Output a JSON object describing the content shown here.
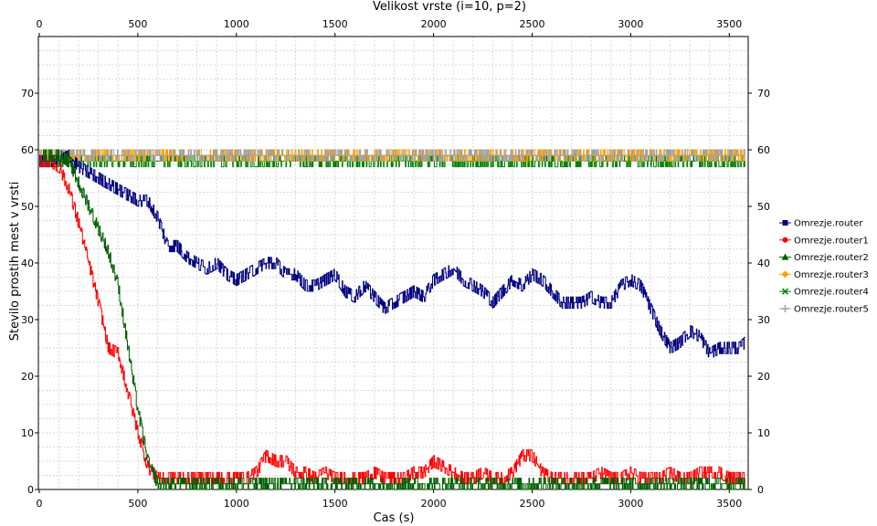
{
  "chart_data": {
    "type": "line",
    "title": "Velikost vrste (i=10, p=2)",
    "xlabel": "Cas (s)",
    "ylabel": "Stevilo prostih mest v vrsti",
    "xlim": [
      0,
      3600
    ],
    "ylim": [
      0,
      80
    ],
    "xticks": [
      0,
      500,
      1000,
      1500,
      2000,
      2500,
      3000,
      3500
    ],
    "yticks": [
      0,
      10,
      20,
      30,
      40,
      50,
      60,
      70
    ],
    "grid": true,
    "legend_position": "right",
    "series": [
      {
        "name": "Omrezje.router",
        "color": "#000080",
        "marker": "square",
        "points": [
          [
            0,
            58
          ],
          [
            50,
            58
          ],
          [
            100,
            58
          ],
          [
            150,
            59
          ],
          [
            200,
            57
          ],
          [
            250,
            56
          ],
          [
            300,
            55
          ],
          [
            350,
            54
          ],
          [
            400,
            53
          ],
          [
            450,
            52
          ],
          [
            500,
            51
          ],
          [
            550,
            51
          ],
          [
            600,
            48
          ],
          [
            650,
            43
          ],
          [
            700,
            43
          ],
          [
            750,
            41
          ],
          [
            800,
            40
          ],
          [
            850,
            39
          ],
          [
            900,
            40
          ],
          [
            950,
            38
          ],
          [
            1000,
            37
          ],
          [
            1050,
            38
          ],
          [
            1100,
            39
          ],
          [
            1150,
            40
          ],
          [
            1200,
            40
          ],
          [
            1250,
            38
          ],
          [
            1300,
            38
          ],
          [
            1350,
            36
          ],
          [
            1400,
            36
          ],
          [
            1450,
            37
          ],
          [
            1500,
            38
          ],
          [
            1550,
            35
          ],
          [
            1600,
            34
          ],
          [
            1650,
            36
          ],
          [
            1700,
            34
          ],
          [
            1750,
            32
          ],
          [
            1800,
            33
          ],
          [
            1850,
            34
          ],
          [
            1900,
            35
          ],
          [
            1950,
            34
          ],
          [
            2000,
            37
          ],
          [
            2050,
            38
          ],
          [
            2100,
            39
          ],
          [
            2150,
            37
          ],
          [
            2200,
            36
          ],
          [
            2250,
            35
          ],
          [
            2300,
            33
          ],
          [
            2350,
            35
          ],
          [
            2400,
            37
          ],
          [
            2450,
            36
          ],
          [
            2500,
            38
          ],
          [
            2550,
            37
          ],
          [
            2600,
            35
          ],
          [
            2650,
            33
          ],
          [
            2700,
            33
          ],
          [
            2750,
            33
          ],
          [
            2800,
            34
          ],
          [
            2850,
            33
          ],
          [
            2900,
            33
          ],
          [
            2950,
            36
          ],
          [
            3000,
            37
          ],
          [
            3050,
            36
          ],
          [
            3100,
            32
          ],
          [
            3150,
            28
          ],
          [
            3200,
            25
          ],
          [
            3250,
            26
          ],
          [
            3300,
            28
          ],
          [
            3350,
            27
          ],
          [
            3400,
            24
          ],
          [
            3450,
            25
          ],
          [
            3500,
            25
          ],
          [
            3550,
            25
          ],
          [
            3580,
            26
          ]
        ]
      },
      {
        "name": "Omrezje.router1",
        "color": "#ff0000",
        "marker": "circle",
        "points": [
          [
            0,
            58
          ],
          [
            50,
            58
          ],
          [
            100,
            57
          ],
          [
            150,
            53
          ],
          [
            200,
            47
          ],
          [
            250,
            40
          ],
          [
            300,
            33
          ],
          [
            350,
            25
          ],
          [
            400,
            24
          ],
          [
            450,
            17
          ],
          [
            500,
            10
          ],
          [
            550,
            4
          ],
          [
            600,
            2
          ],
          [
            650,
            2
          ],
          [
            700,
            2
          ],
          [
            750,
            2
          ],
          [
            800,
            2
          ],
          [
            850,
            2
          ],
          [
            900,
            2
          ],
          [
            950,
            2
          ],
          [
            1000,
            2
          ],
          [
            1050,
            2
          ],
          [
            1100,
            3
          ],
          [
            1150,
            6
          ],
          [
            1200,
            5
          ],
          [
            1250,
            5
          ],
          [
            1300,
            3
          ],
          [
            1350,
            3
          ],
          [
            1400,
            2
          ],
          [
            1450,
            3
          ],
          [
            1500,
            2
          ],
          [
            1550,
            2
          ],
          [
            1600,
            2
          ],
          [
            1650,
            2
          ],
          [
            1700,
            3
          ],
          [
            1750,
            2
          ],
          [
            1800,
            2
          ],
          [
            1850,
            2
          ],
          [
            1900,
            3
          ],
          [
            1950,
            3
          ],
          [
            2000,
            5
          ],
          [
            2050,
            4
          ],
          [
            2100,
            3
          ],
          [
            2150,
            2
          ],
          [
            2200,
            2
          ],
          [
            2250,
            3
          ],
          [
            2300,
            2
          ],
          [
            2350,
            2
          ],
          [
            2400,
            3
          ],
          [
            2450,
            6
          ],
          [
            2500,
            6
          ],
          [
            2550,
            3
          ],
          [
            2600,
            2
          ],
          [
            2650,
            2
          ],
          [
            2700,
            2
          ],
          [
            2750,
            2
          ],
          [
            2800,
            2
          ],
          [
            2850,
            3
          ],
          [
            2900,
            2
          ],
          [
            2950,
            2
          ],
          [
            3000,
            3
          ],
          [
            3050,
            2
          ],
          [
            3100,
            2
          ],
          [
            3150,
            2
          ],
          [
            3200,
            3
          ],
          [
            3250,
            2
          ],
          [
            3300,
            2
          ],
          [
            3350,
            3
          ],
          [
            3400,
            3
          ],
          [
            3450,
            3
          ],
          [
            3500,
            2
          ],
          [
            3550,
            2
          ],
          [
            3580,
            2
          ]
        ]
      },
      {
        "name": "Omrezje.router2",
        "color": "#006000",
        "marker": "triangle",
        "points": [
          [
            0,
            59
          ],
          [
            50,
            59
          ],
          [
            100,
            59
          ],
          [
            150,
            58
          ],
          [
            200,
            54
          ],
          [
            250,
            50
          ],
          [
            300,
            46
          ],
          [
            350,
            42
          ],
          [
            400,
            36
          ],
          [
            450,
            25
          ],
          [
            500,
            14
          ],
          [
            550,
            5
          ],
          [
            600,
            1
          ],
          [
            650,
            1
          ],
          [
            700,
            1
          ],
          [
            750,
            1
          ],
          [
            800,
            1
          ],
          [
            850,
            1
          ],
          [
            900,
            1
          ],
          [
            950,
            1
          ],
          [
            1000,
            1
          ],
          [
            1050,
            1
          ],
          [
            1100,
            1
          ],
          [
            1150,
            1
          ],
          [
            1200,
            1
          ],
          [
            1250,
            1
          ],
          [
            1300,
            1
          ],
          [
            1350,
            1
          ],
          [
            1400,
            1
          ],
          [
            1450,
            1
          ],
          [
            1500,
            1
          ],
          [
            1550,
            1
          ],
          [
            1600,
            1
          ],
          [
            1650,
            1
          ],
          [
            1700,
            1
          ],
          [
            1750,
            1
          ],
          [
            1800,
            1
          ],
          [
            1850,
            1
          ],
          [
            1900,
            1
          ],
          [
            1950,
            1
          ],
          [
            2000,
            1
          ],
          [
            2050,
            1
          ],
          [
            2100,
            1
          ],
          [
            2150,
            1
          ],
          [
            2200,
            1
          ],
          [
            2250,
            1
          ],
          [
            2300,
            1
          ],
          [
            2350,
            1
          ],
          [
            2400,
            1
          ],
          [
            2450,
            1
          ],
          [
            2500,
            1
          ],
          [
            2550,
            1
          ],
          [
            2600,
            1
          ],
          [
            2650,
            1
          ],
          [
            2700,
            1
          ],
          [
            2750,
            1
          ],
          [
            2800,
            1
          ],
          [
            2850,
            1
          ],
          [
            2900,
            1
          ],
          [
            2950,
            1
          ],
          [
            3000,
            1
          ],
          [
            3050,
            1
          ],
          [
            3100,
            1
          ],
          [
            3150,
            1
          ],
          [
            3200,
            1
          ],
          [
            3250,
            1
          ],
          [
            3300,
            1
          ],
          [
            3350,
            1
          ],
          [
            3400,
            1
          ],
          [
            3450,
            1
          ],
          [
            3500,
            1
          ],
          [
            3550,
            1
          ],
          [
            3580,
            1
          ]
        ]
      },
      {
        "name": "Omrezje.router3",
        "color": "#ffa000",
        "marker": "diamond",
        "points": [
          [
            0,
            59
          ],
          [
            3580,
            59
          ]
        ]
      },
      {
        "name": "Omrezje.router4",
        "color": "#008000",
        "marker": "x",
        "points": [
          [
            0,
            58
          ],
          [
            3580,
            58
          ]
        ]
      },
      {
        "name": "Omrezje.router5",
        "color": "#a0a0a0",
        "marker": "plus",
        "points": [
          [
            0,
            59
          ],
          [
            3580,
            59
          ]
        ]
      }
    ]
  }
}
